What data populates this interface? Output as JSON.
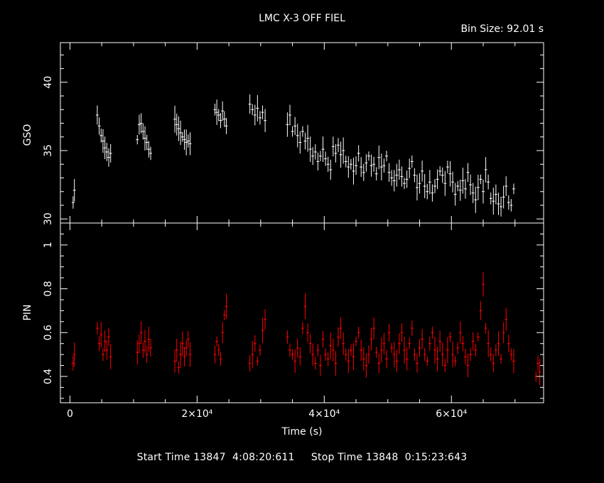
{
  "title": "LMC X-3 OFF FIEL",
  "bin_size": "Bin Size: 92.01 s",
  "colors": {
    "background": "#000000",
    "axes": "#ffffff",
    "gso_series": "#ffffff",
    "pin_series": "#ff0000"
  },
  "footer": {
    "start_label": "Start Time",
    "start_value": "13847  4:08:20:611",
    "stop_label": "Stop Time",
    "stop_value": "13848  0:15:23:643"
  },
  "chart_data": [
    {
      "type": "scatter",
      "panel": "top",
      "ylabel": "GSO",
      "xlim": [
        -1500,
        74500
      ],
      "ylim": [
        29.7,
        42.9
      ],
      "yticks": [
        30,
        35,
        40
      ],
      "series": [
        {
          "points": [
            [
              500,
              31.2
            ],
            [
              700,
              32.1
            ],
            [
              4300,
              37.6
            ],
            [
              4600,
              36.8
            ],
            [
              4900,
              36.1
            ],
            [
              5200,
              35.7
            ],
            [
              5500,
              35.2
            ],
            [
              5800,
              34.9
            ],
            [
              6100,
              34.5
            ],
            [
              6400,
              34.8
            ],
            [
              10600,
              35.8
            ],
            [
              10900,
              36.9
            ],
            [
              11200,
              37.0
            ],
            [
              11500,
              36.4
            ],
            [
              11800,
              35.9
            ],
            [
              12100,
              35.6
            ],
            [
              12400,
              35.1
            ],
            [
              12700,
              34.8
            ],
            [
              16500,
              37.3
            ],
            [
              16800,
              36.9
            ],
            [
              17100,
              36.6
            ],
            [
              17400,
              36.3
            ],
            [
              17700,
              36.0
            ],
            [
              18000,
              35.8
            ],
            [
              18300,
              35.6
            ],
            [
              18600,
              35.7
            ],
            [
              18900,
              35.5
            ],
            [
              22800,
              38.0
            ],
            [
              23100,
              37.8
            ],
            [
              23400,
              37.6
            ],
            [
              23700,
              37.2
            ],
            [
              24000,
              37.9
            ],
            [
              24300,
              37.3
            ],
            [
              24600,
              36.8
            ],
            [
              28300,
              38.4
            ],
            [
              28700,
              38.0
            ],
            [
              29100,
              37.6
            ],
            [
              29500,
              38.1
            ],
            [
              29900,
              37.4
            ],
            [
              30300,
              37.8
            ],
            [
              30700,
              37.2
            ],
            [
              34200,
              36.9
            ],
            [
              34600,
              37.6
            ],
            [
              35000,
              36.4
            ],
            [
              35400,
              36.8
            ],
            [
              35800,
              36.1
            ],
            [
              36200,
              35.6
            ],
            [
              36600,
              36.4
            ],
            [
              37000,
              35.7
            ],
            [
              37400,
              35.9
            ],
            [
              37800,
              35.1
            ],
            [
              38200,
              34.6
            ],
            [
              38600,
              34.9
            ],
            [
              39000,
              34.2
            ],
            [
              39400,
              34.6
            ],
            [
              39800,
              35.1
            ],
            [
              40200,
              34.4
            ],
            [
              40600,
              34.0
            ],
            [
              41000,
              33.6
            ],
            [
              41400,
              35.3
            ],
            [
              41800,
              34.8
            ],
            [
              42200,
              35.4
            ],
            [
              42600,
              34.7
            ],
            [
              43000,
              35.0
            ],
            [
              43400,
              34.2
            ],
            [
              43800,
              33.8
            ],
            [
              44200,
              34.0
            ],
            [
              44600,
              33.5
            ],
            [
              45000,
              33.9
            ],
            [
              45400,
              34.8
            ],
            [
              45800,
              33.8
            ],
            [
              46200,
              33.4
            ],
            [
              46600,
              34.1
            ],
            [
              47000,
              34.6
            ],
            [
              47400,
              33.9
            ],
            [
              47800,
              34.0
            ],
            [
              48200,
              33.3
            ],
            [
              48600,
              34.5
            ],
            [
              49000,
              33.8
            ],
            [
              49400,
              33.9
            ],
            [
              49800,
              34.6
            ],
            [
              50200,
              33.4
            ],
            [
              50600,
              33.0
            ],
            [
              51000,
              32.8
            ],
            [
              51400,
              33.2
            ],
            [
              51800,
              33.6
            ],
            [
              52200,
              33.1
            ],
            [
              52600,
              32.6
            ],
            [
              53000,
              32.9
            ],
            [
              53400,
              33.7
            ],
            [
              53800,
              34.2
            ],
            [
              54200,
              33.2
            ],
            [
              54600,
              32.3
            ],
            [
              55000,
              32.6
            ],
            [
              55400,
              33.5
            ],
            [
              55800,
              32.4
            ],
            [
              56200,
              32.0
            ],
            [
              56600,
              32.7
            ],
            [
              57000,
              31.9
            ],
            [
              57400,
              32.4
            ],
            [
              57800,
              32.9
            ],
            [
              58200,
              33.5
            ],
            [
              58600,
              33.2
            ],
            [
              59000,
              32.6
            ],
            [
              59400,
              33.8
            ],
            [
              59800,
              33.3
            ],
            [
              60200,
              32.7
            ],
            [
              60600,
              31.8
            ],
            [
              61000,
              32.4
            ],
            [
              61400,
              32.1
            ],
            [
              61800,
              32.8
            ],
            [
              62200,
              32.2
            ],
            [
              62600,
              33.4
            ],
            [
              63000,
              32.5
            ],
            [
              63400,
              31.9
            ],
            [
              63800,
              31.4
            ],
            [
              64200,
              32.3
            ],
            [
              64600,
              32.9
            ],
            [
              65000,
              32.0
            ],
            [
              65400,
              33.6
            ],
            [
              65800,
              32.7
            ],
            [
              66200,
              31.5
            ],
            [
              66600,
              31.3
            ],
            [
              67000,
              31.8
            ],
            [
              67400,
              31.1
            ],
            [
              67800,
              30.9
            ],
            [
              68200,
              31.6
            ],
            [
              68600,
              32.4
            ],
            [
              69000,
              31.2
            ],
            [
              69400,
              31.0
            ],
            [
              69800,
              32.2
            ]
          ]
        }
      ]
    },
    {
      "type": "scatter",
      "panel": "bottom",
      "ylabel": "PIN",
      "xlabel": "Time (s)",
      "xlim": [
        -1500,
        74500
      ],
      "ylim": [
        0.28,
        1.1
      ],
      "yticks": [
        0.4,
        0.6,
        0.8,
        1
      ],
      "xticks": [
        0,
        20000,
        40000,
        60000
      ],
      "xtick_labels": [
        "0",
        "2×10⁴",
        "4×10⁴",
        "6×10⁴"
      ],
      "series": [
        {
          "points": [
            [
              500,
              0.46
            ],
            [
              700,
              0.5
            ],
            [
              4300,
              0.62
            ],
            [
              4600,
              0.55
            ],
            [
              4900,
              0.59
            ],
            [
              5200,
              0.5
            ],
            [
              5500,
              0.56
            ],
            [
              5800,
              0.52
            ],
            [
              6100,
              0.58
            ],
            [
              6400,
              0.49
            ],
            [
              10600,
              0.51
            ],
            [
              10900,
              0.55
            ],
            [
              11200,
              0.6
            ],
            [
              11500,
              0.52
            ],
            [
              11800,
              0.56
            ],
            [
              12100,
              0.5
            ],
            [
              12400,
              0.57
            ],
            [
              12700,
              0.53
            ],
            [
              16500,
              0.47
            ],
            [
              16800,
              0.52
            ],
            [
              17100,
              0.44
            ],
            [
              17400,
              0.5
            ],
            [
              17700,
              0.55
            ],
            [
              18000,
              0.49
            ],
            [
              18300,
              0.53
            ],
            [
              18600,
              0.57
            ],
            [
              18900,
              0.5
            ],
            [
              22800,
              0.5
            ],
            [
              23100,
              0.56
            ],
            [
              23400,
              0.52
            ],
            [
              23700,
              0.48
            ],
            [
              24000,
              0.6
            ],
            [
              24300,
              0.68
            ],
            [
              24600,
              0.72
            ],
            [
              28300,
              0.46
            ],
            [
              28700,
              0.5
            ],
            [
              29100,
              0.55
            ],
            [
              29500,
              0.47
            ],
            [
              29900,
              0.52
            ],
            [
              30300,
              0.61
            ],
            [
              30700,
              0.66
            ],
            [
              34200,
              0.58
            ],
            [
              34600,
              0.52
            ],
            [
              35000,
              0.5
            ],
            [
              35400,
              0.47
            ],
            [
              35800,
              0.53
            ],
            [
              36200,
              0.49
            ],
            [
              36600,
              0.62
            ],
            [
              37000,
              0.72
            ],
            [
              37400,
              0.6
            ],
            [
              37800,
              0.55
            ],
            [
              38200,
              0.5
            ],
            [
              38600,
              0.46
            ],
            [
              39000,
              0.52
            ],
            [
              39400,
              0.45
            ],
            [
              39800,
              0.57
            ],
            [
              40200,
              0.5
            ],
            [
              40600,
              0.48
            ],
            [
              41000,
              0.54
            ],
            [
              41400,
              0.52
            ],
            [
              41800,
              0.46
            ],
            [
              42200,
              0.58
            ],
            [
              42600,
              0.62
            ],
            [
              43000,
              0.55
            ],
            [
              43400,
              0.5
            ],
            [
              43800,
              0.47
            ],
            [
              44200,
              0.52
            ],
            [
              44600,
              0.49
            ],
            [
              45000,
              0.56
            ],
            [
              45400,
              0.6
            ],
            [
              45800,
              0.52
            ],
            [
              46200,
              0.48
            ],
            [
              46600,
              0.45
            ],
            [
              47000,
              0.5
            ],
            [
              47400,
              0.57
            ],
            [
              47800,
              0.62
            ],
            [
              48200,
              0.51
            ],
            [
              48600,
              0.46
            ],
            [
              49000,
              0.52
            ],
            [
              49400,
              0.55
            ],
            [
              49800,
              0.48
            ],
            [
              50200,
              0.6
            ],
            [
              50600,
              0.53
            ],
            [
              51000,
              0.5
            ],
            [
              51400,
              0.47
            ],
            [
              51800,
              0.55
            ],
            [
              52200,
              0.6
            ],
            [
              52600,
              0.52
            ],
            [
              53000,
              0.48
            ],
            [
              53400,
              0.55
            ],
            [
              53800,
              0.62
            ],
            [
              54200,
              0.5
            ],
            [
              54600,
              0.46
            ],
            [
              55000,
              0.53
            ],
            [
              55400,
              0.57
            ],
            [
              55800,
              0.5
            ],
            [
              56200,
              0.47
            ],
            [
              56600,
              0.55
            ],
            [
              57000,
              0.6
            ],
            [
              57400,
              0.52
            ],
            [
              57800,
              0.48
            ],
            [
              58200,
              0.56
            ],
            [
              58600,
              0.5
            ],
            [
              59000,
              0.45
            ],
            [
              59400,
              0.52
            ],
            [
              59800,
              0.58
            ],
            [
              60200,
              0.5
            ],
            [
              60600,
              0.47
            ],
            [
              61000,
              0.53
            ],
            [
              61400,
              0.6
            ],
            [
              61800,
              0.55
            ],
            [
              62200,
              0.49
            ],
            [
              62600,
              0.45
            ],
            [
              63000,
              0.5
            ],
            [
              63400,
              0.56
            ],
            [
              63800,
              0.52
            ],
            [
              64200,
              0.58
            ],
            [
              64600,
              0.7
            ],
            [
              65000,
              0.82
            ],
            [
              65400,
              0.62
            ],
            [
              65800,
              0.55
            ],
            [
              66200,
              0.5
            ],
            [
              66600,
              0.46
            ],
            [
              67000,
              0.52
            ],
            [
              67400,
              0.55
            ],
            [
              67800,
              0.48
            ],
            [
              68200,
              0.6
            ],
            [
              68600,
              0.66
            ],
            [
              69000,
              0.55
            ],
            [
              69400,
              0.5
            ],
            [
              69800,
              0.47
            ],
            [
              73300,
              0.4
            ],
            [
              73600,
              0.46
            ],
            [
              73900,
              0.42
            ]
          ]
        }
      ]
    }
  ]
}
